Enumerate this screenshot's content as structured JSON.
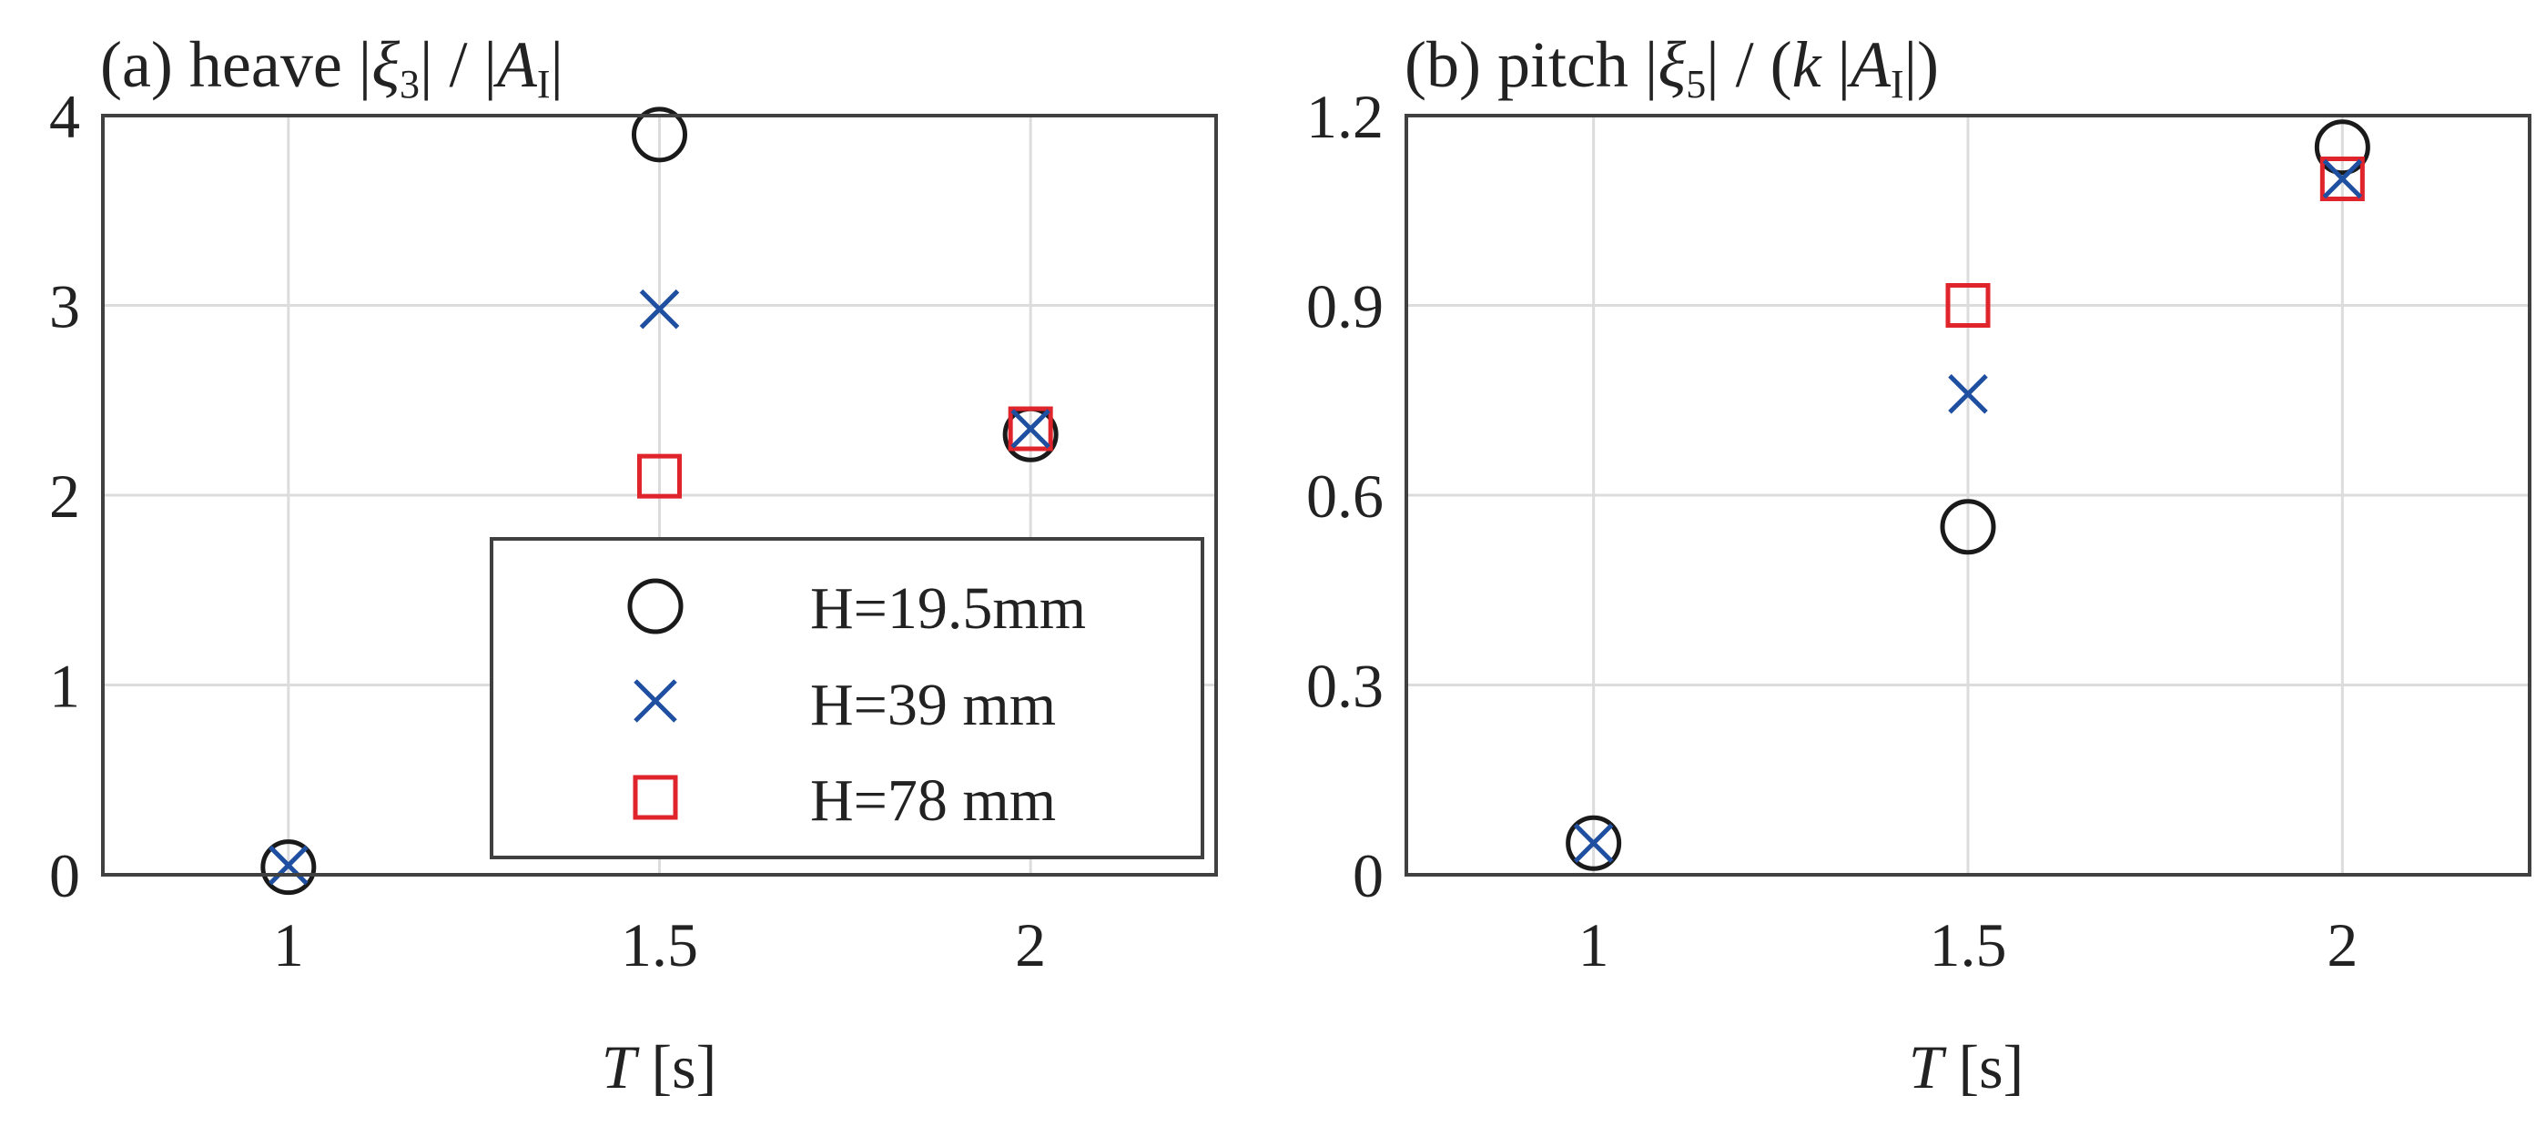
{
  "colors": {
    "circle": "#1a1a1a",
    "cross": "#1f4fa0",
    "square": "#e0242b",
    "axis": "#404040",
    "grid": "#dcdcdc"
  },
  "chart_data": [
    {
      "type": "scatter",
      "title": "(a) heave |ξ3| / |AI|",
      "title_parts": {
        "prefix": "(a) heave |",
        "symbol": "ξ",
        "sub": "3",
        "middle": "| / |",
        "symbol2": "A",
        "sub2": "I",
        "suffix": "|"
      },
      "xlabel": "T [s]",
      "xlabel_parts": {
        "var": "T",
        "unit": " [s]"
      },
      "xlim": [
        0.75,
        2.25
      ],
      "ylim": [
        0,
        4
      ],
      "xticks": [
        1,
        1.5,
        2
      ],
      "xtick_labels": [
        "1",
        "1.5",
        "2"
      ],
      "yticks": [
        0,
        1,
        2,
        3,
        4
      ],
      "ytick_labels": [
        "0",
        "1",
        "2",
        "3",
        "4"
      ],
      "grid": true,
      "legend_position": "bottom-right",
      "series": [
        {
          "name": "H=19.5mm",
          "marker": "circle",
          "x": [
            1,
            1.5,
            2
          ],
          "y": [
            0.04,
            3.9,
            2.32
          ]
        },
        {
          "name": "H=39 mm",
          "marker": "cross",
          "x": [
            1,
            1.5,
            2
          ],
          "y": [
            0.05,
            2.98,
            2.35
          ]
        },
        {
          "name": "H=78 mm",
          "marker": "square",
          "x": [
            1.5,
            2
          ],
          "y": [
            2.1,
            2.35
          ]
        }
      ]
    },
    {
      "type": "scatter",
      "title": "(b) pitch |ξ5| / (k |AI|)",
      "title_parts": {
        "prefix": "(b) pitch |",
        "symbol": "ξ",
        "sub": "5",
        "middle": "| / (",
        "var": "k",
        "middle2": " |",
        "symbol2": "A",
        "sub2": "I",
        "suffix": "|)"
      },
      "xlabel": "T [s]",
      "xlabel_parts": {
        "var": "T",
        "unit": " [s]"
      },
      "xlim": [
        0.75,
        2.25
      ],
      "ylim": [
        0,
        1.2
      ],
      "xticks": [
        1,
        1.5,
        2
      ],
      "xtick_labels": [
        "1",
        "1.5",
        "2"
      ],
      "yticks": [
        0,
        0.3,
        0.6,
        0.9,
        1.2
      ],
      "ytick_labels": [
        "0",
        "0.3",
        "0.6",
        "0.9",
        "1.2"
      ],
      "grid": true,
      "series": [
        {
          "name": "H=19.5mm",
          "marker": "circle",
          "x": [
            1,
            1.5,
            2
          ],
          "y": [
            0.05,
            0.55,
            1.15
          ]
        },
        {
          "name": "H=39 mm",
          "marker": "cross",
          "x": [
            1,
            1.5,
            2
          ],
          "y": [
            0.05,
            0.76,
            1.1
          ]
        },
        {
          "name": "H=78 mm",
          "marker": "square",
          "x": [
            1.5,
            2
          ],
          "y": [
            0.9,
            1.1
          ]
        }
      ]
    }
  ]
}
